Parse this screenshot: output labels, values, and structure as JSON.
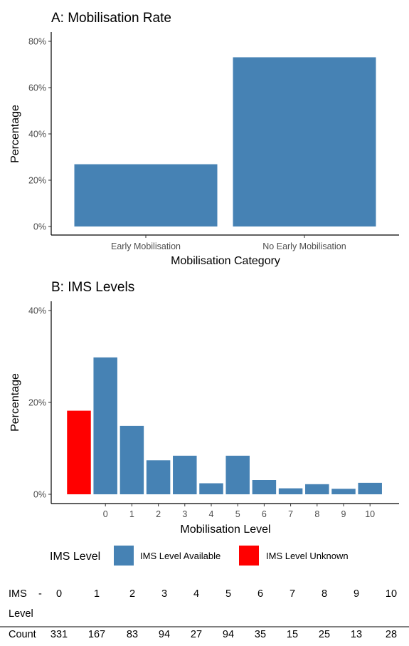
{
  "chart_data": [
    {
      "type": "bar",
      "title": "A: Mobilisation Rate",
      "xlabel": "Mobilisation Category",
      "ylabel": "Percentage",
      "categories": [
        "Early Mobilisation",
        "No Early Mobilisation"
      ],
      "values": [
        26.9,
        73.1
      ],
      "yticks": [
        "0%",
        "20%",
        "40%",
        "60%",
        "80%"
      ],
      "ylim": [
        0,
        80
      ],
      "color": "#4682B4"
    },
    {
      "type": "bar",
      "title": "B: IMS Levels",
      "xlabel": "Mobilisation Level",
      "ylabel": "Percentage",
      "categories": [
        "",
        "0",
        "1",
        "2",
        "3",
        "4",
        "5",
        "6",
        "7",
        "8",
        "9",
        "10"
      ],
      "values": [
        18.2,
        29.8,
        14.9,
        7.4,
        8.4,
        2.4,
        8.4,
        3.1,
        1.3,
        2.2,
        1.2,
        2.5
      ],
      "groups": [
        "IMS Level Unknown",
        "IMS Level Available",
        "IMS Level Available",
        "IMS Level Available",
        "IMS Level Available",
        "IMS Level Available",
        "IMS Level Available",
        "IMS Level Available",
        "IMS Level Available",
        "IMS Level Available",
        "IMS Level Available",
        "IMS Level Available"
      ],
      "yticks": [
        "0%",
        "20%",
        "40%"
      ],
      "ylim": [
        0,
        40
      ],
      "legend": {
        "title": "IMS Level",
        "position": "bottom",
        "items": [
          {
            "label": "IMS Level Available",
            "color": "#4682B4"
          },
          {
            "label": "IMS Level Unknown",
            "color": "#FF0000"
          }
        ]
      }
    }
  ],
  "table": {
    "row1_label": "IMS",
    "row1_dash": "-",
    "row1_label2": "Level",
    "levels": [
      "0",
      "1",
      "2",
      "3",
      "4",
      "5",
      "6",
      "7",
      "8",
      "9",
      "10"
    ],
    "row2_label": "Count",
    "counts": [
      "331",
      "167",
      "83",
      "94",
      "27",
      "94",
      "35",
      "15",
      "25",
      "13",
      "28"
    ]
  }
}
